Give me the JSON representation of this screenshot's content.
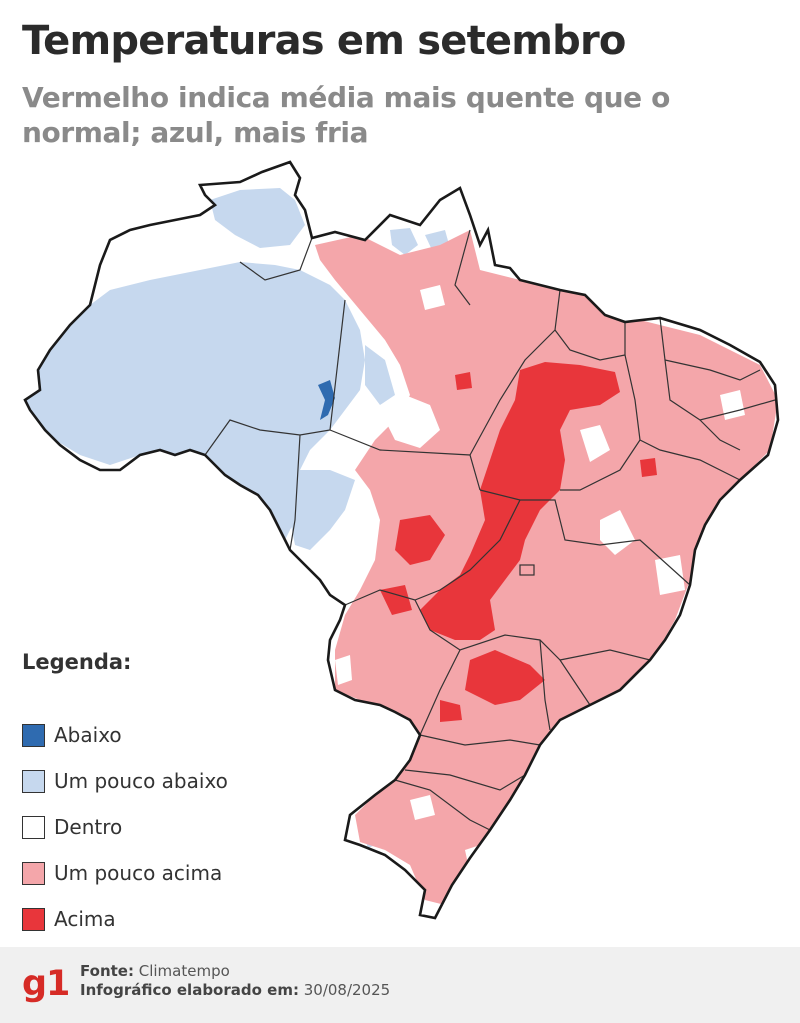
{
  "header": {
    "title": "Temperaturas em setembro",
    "subtitle": "Vermelho indica média mais quente que o normal; azul, mais fria"
  },
  "legend": {
    "title": "Legenda:",
    "items": [
      {
        "label": "Abaixo",
        "color": "#2f6bb0"
      },
      {
        "label": "Um pouco abaixo",
        "color": "#c6d8ee"
      },
      {
        "label": "Dentro",
        "color": "#ffffff"
      },
      {
        "label": "Um pouco acima",
        "color": "#f4a6aa"
      },
      {
        "label": "Acima",
        "color": "#e8363b"
      }
    ]
  },
  "footer": {
    "logo": "g1",
    "source_label": "Fonte:",
    "source_value": "Climatempo",
    "date_label": "Infográfico elaborado em:",
    "date_value": "30/08/2025"
  }
}
